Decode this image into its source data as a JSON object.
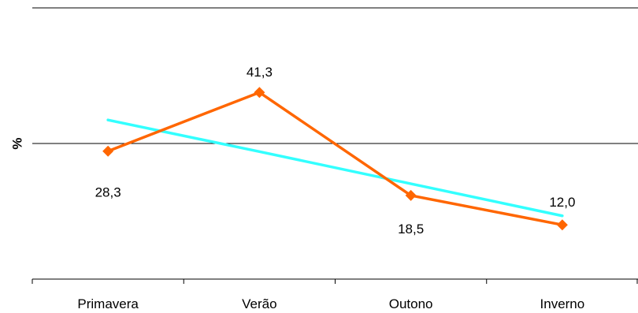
{
  "chart_data": {
    "type": "line",
    "categories": [
      "Primavera",
      "Verão",
      "Outono",
      "Inverno"
    ],
    "ylabel": "%",
    "xlabel": "",
    "title": "",
    "ylim": [
      0,
      60
    ],
    "yticks": [
      0,
      30,
      60
    ],
    "series": [
      {
        "values": [
          28.3,
          41.3,
          18.5,
          12.0
        ],
        "labels": [
          "28,3",
          "41,3",
          "18,5",
          "12,0"
        ],
        "color": "#ff6600",
        "marker": "diamond"
      },
      {
        "trendline": true,
        "values": [
          35.2,
          28.2,
          21.1,
          14.0
        ],
        "color": "#33ffff"
      }
    ],
    "grid": "horizontal",
    "legend": "none"
  }
}
